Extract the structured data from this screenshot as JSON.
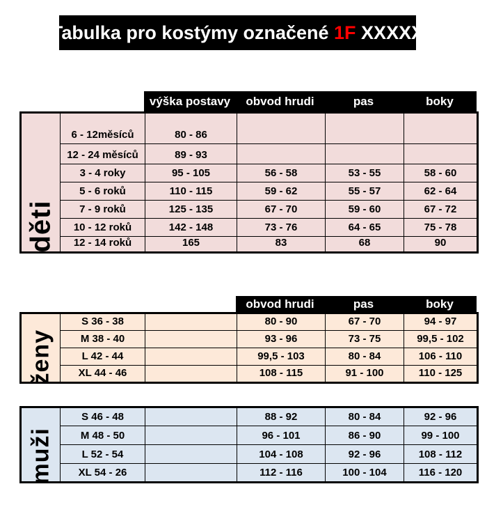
{
  "title": {
    "prefix": "Tabulka pro kostýmy označené ",
    "highlight": "1F",
    "suffix": " XXXXX"
  },
  "colors": {
    "banner_bg": "#000000",
    "banner_text": "#FFFFFF",
    "accent_red": "#FF0000",
    "children_bg": "#F2DCDB",
    "women_bg": "#FDE9D9",
    "men_bg": "#DCE6F1",
    "border": "#000000"
  },
  "children": {
    "group_label": "děti",
    "headers": [
      "výška postavy",
      "obvod hrudi",
      "pas",
      "boky"
    ],
    "rows": [
      [
        "6 - 12měsíců",
        "80 - 86",
        "",
        "",
        ""
      ],
      [
        "12 - 24 měsíců",
        "89 - 93",
        "",
        "",
        ""
      ],
      [
        "3 - 4 roky",
        "95 - 105",
        "56 - 58",
        "53 - 55",
        "58 - 60"
      ],
      [
        "5 - 6 roků",
        "110 - 115",
        "59 - 62",
        "55 - 57",
        "62 - 64"
      ],
      [
        "7 - 9 roků",
        "125 - 135",
        "67 - 70",
        "59 - 60",
        "67 - 72"
      ],
      [
        "10 - 12 roků",
        "142 - 148",
        "73 - 76",
        "64 - 65",
        "75 - 78"
      ],
      [
        "12 - 14 roků",
        "165",
        "83",
        "68",
        "90"
      ]
    ]
  },
  "women": {
    "group_label": "ženy",
    "headers": [
      "obvod hrudi",
      "pas",
      "boky"
    ],
    "rows": [
      [
        "S 36 - 38",
        "",
        "80 - 90",
        "67 - 70",
        "94 - 97"
      ],
      [
        "M 38 - 40",
        "",
        "93 - 96",
        "73 - 75",
        "99,5 - 102"
      ],
      [
        "L 42 - 44",
        "",
        "99,5 - 103",
        "80 - 84",
        "106 - 110"
      ],
      [
        "XL 44 - 46",
        "",
        "108 - 115",
        "91 - 100",
        "110 - 125"
      ]
    ]
  },
  "men": {
    "group_label": "muži",
    "rows": [
      [
        "S 46 - 48",
        "",
        "88 - 92",
        "80 - 84",
        "92 - 96"
      ],
      [
        "M 48 - 50",
        "",
        "96 - 101",
        "86 - 90",
        "99 - 100"
      ],
      [
        "L 52 - 54",
        "",
        "104 - 108",
        "92 - 96",
        "108 - 112"
      ],
      [
        "XL 54 - 26",
        "",
        "112 - 116",
        "100 - 104",
        "116 - 120"
      ]
    ]
  }
}
